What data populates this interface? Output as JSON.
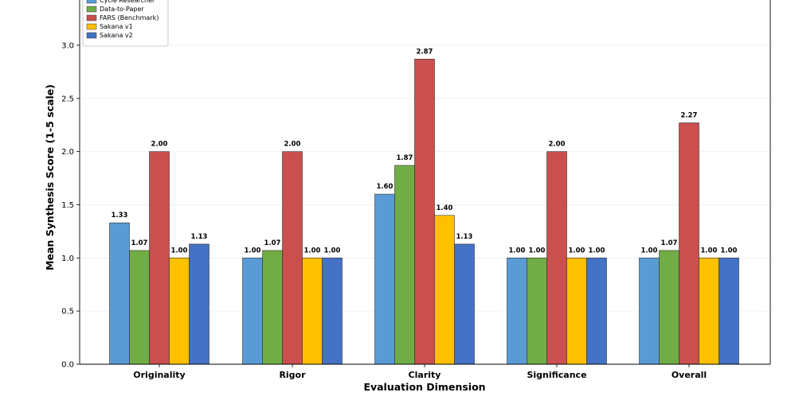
{
  "chart_data": {
    "type": "bar",
    "title": "",
    "xlabel": "Evaluation Dimension",
    "ylabel": "Mean Synthesis Score (1-5 scale)",
    "ylim": [
      0,
      3.0
    ],
    "yticks": [
      "0.0",
      "0.5",
      "1.0",
      "1.5",
      "2.0",
      "2.5",
      "3.0"
    ],
    "grid": true,
    "legend_position": "top-left",
    "categories": [
      "Originality",
      "Rigor",
      "Clarity",
      "Significance",
      "Overall"
    ],
    "series": [
      {
        "name": "Cycle Researcher",
        "color": "#5b9bd5",
        "values": [
          1.33,
          1.0,
          1.6,
          1.0,
          1.0
        ],
        "labels": [
          "1.33",
          "1.00",
          "1.60",
          "1.00",
          "1.00"
        ]
      },
      {
        "name": "Data-to-Paper",
        "color": "#70ad47",
        "values": [
          1.07,
          1.07,
          1.87,
          1.0,
          1.07
        ],
        "labels": [
          "1.07",
          "1.07",
          "1.87",
          "1.00",
          "1.07"
        ]
      },
      {
        "name": "FARS (Benchmark)",
        "color": "#c9504e",
        "values": [
          2.0,
          2.0,
          2.87,
          2.0,
          2.27
        ],
        "labels": [
          "2.00",
          "2.00",
          "2.87",
          "2.00",
          "2.27"
        ]
      },
      {
        "name": "Sakana v1",
        "color": "#ffc000",
        "values": [
          1.0,
          1.0,
          1.4,
          1.0,
          1.0
        ],
        "labels": [
          "1.00",
          "1.00",
          "1.40",
          "1.00",
          "1.00"
        ]
      },
      {
        "name": "Sakana v2",
        "color": "#4472c4",
        "values": [
          1.13,
          1.0,
          1.13,
          1.0,
          1.0
        ],
        "labels": [
          "1.13",
          "1.00",
          "1.13",
          "1.00",
          "1.00"
        ]
      }
    ]
  }
}
